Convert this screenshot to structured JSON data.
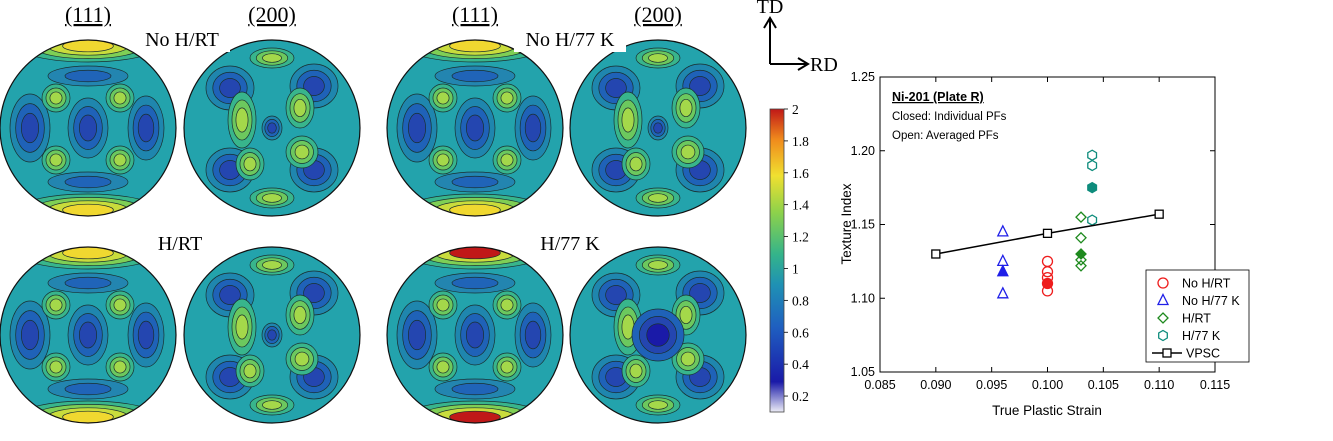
{
  "pole_figures": {
    "index_labels": [
      "(111)",
      "(200)",
      "(111)",
      "(200)"
    ],
    "conditions": [
      "No H/RT",
      "No H/77 K",
      "H/RT",
      "H/77 K"
    ],
    "axes": {
      "td": "TD",
      "rd": "RD"
    },
    "colorbar": {
      "ticks": [
        "2",
        "1.8",
        "1.6",
        "1.4",
        "1.2",
        "1",
        "0.8",
        "0.6",
        "0.4",
        "0.2"
      ],
      "min": 0.1,
      "max": 2.0,
      "colors": [
        "#ececf6",
        "#1a1aa8",
        "#1f5fc0",
        "#1f91b4",
        "#34b48a",
        "#8ed24a",
        "#f0e030",
        "#f08a1c",
        "#c01818"
      ]
    }
  },
  "chart_data": {
    "type": "scatter",
    "title": "Ni-201 (Plate R)",
    "subtitle_lines": [
      "Closed: Individual PFs",
      "Open: Averaged PFs"
    ],
    "xlabel": "True Plastic Strain",
    "ylabel": "Texture Index",
    "xlim": [
      0.085,
      0.115
    ],
    "ylim": [
      1.05,
      1.25
    ],
    "x_ticks": [
      "0.085",
      "0.090",
      "0.095",
      "0.100",
      "0.105",
      "0.110",
      "0.115"
    ],
    "y_ticks": [
      "1.05",
      "1.10",
      "1.15",
      "1.20",
      "1.25"
    ],
    "legend_position": "bottom-right",
    "series": [
      {
        "name": "No H/RT",
        "marker": "circle",
        "color": "#ee1c1c",
        "open": [
          [
            0.1,
            1.105
          ],
          [
            0.1,
            1.114
          ],
          [
            0.1,
            1.118
          ],
          [
            0.1,
            1.125
          ]
        ],
        "closed": [
          [
            0.1,
            1.11
          ]
        ]
      },
      {
        "name": "No H/77 K",
        "marker": "triangle",
        "color": "#1f1fe8",
        "open": [
          [
            0.096,
            1.103
          ],
          [
            0.096,
            1.125
          ],
          [
            0.096,
            1.145
          ]
        ],
        "closed": [
          [
            0.096,
            1.118
          ]
        ]
      },
      {
        "name": "H/RT",
        "marker": "diamond",
        "color": "#1e8a1e",
        "open": [
          [
            0.103,
            1.122
          ],
          [
            0.103,
            1.126
          ],
          [
            0.103,
            1.141
          ],
          [
            0.103,
            1.155
          ]
        ],
        "closed": [
          [
            0.103,
            1.13
          ]
        ]
      },
      {
        "name": "H/77 K",
        "marker": "hexagon",
        "color": "#0e8c7c",
        "open": [
          [
            0.104,
            1.153
          ],
          [
            0.104,
            1.19
          ],
          [
            0.104,
            1.197
          ]
        ],
        "closed": [
          [
            0.104,
            1.175
          ]
        ]
      },
      {
        "name": "VPSC",
        "marker": "square-line",
        "color": "#000000",
        "open": [
          [
            0.09,
            1.13
          ],
          [
            0.1,
            1.144
          ],
          [
            0.11,
            1.157
          ]
        ],
        "closed": []
      }
    ]
  }
}
